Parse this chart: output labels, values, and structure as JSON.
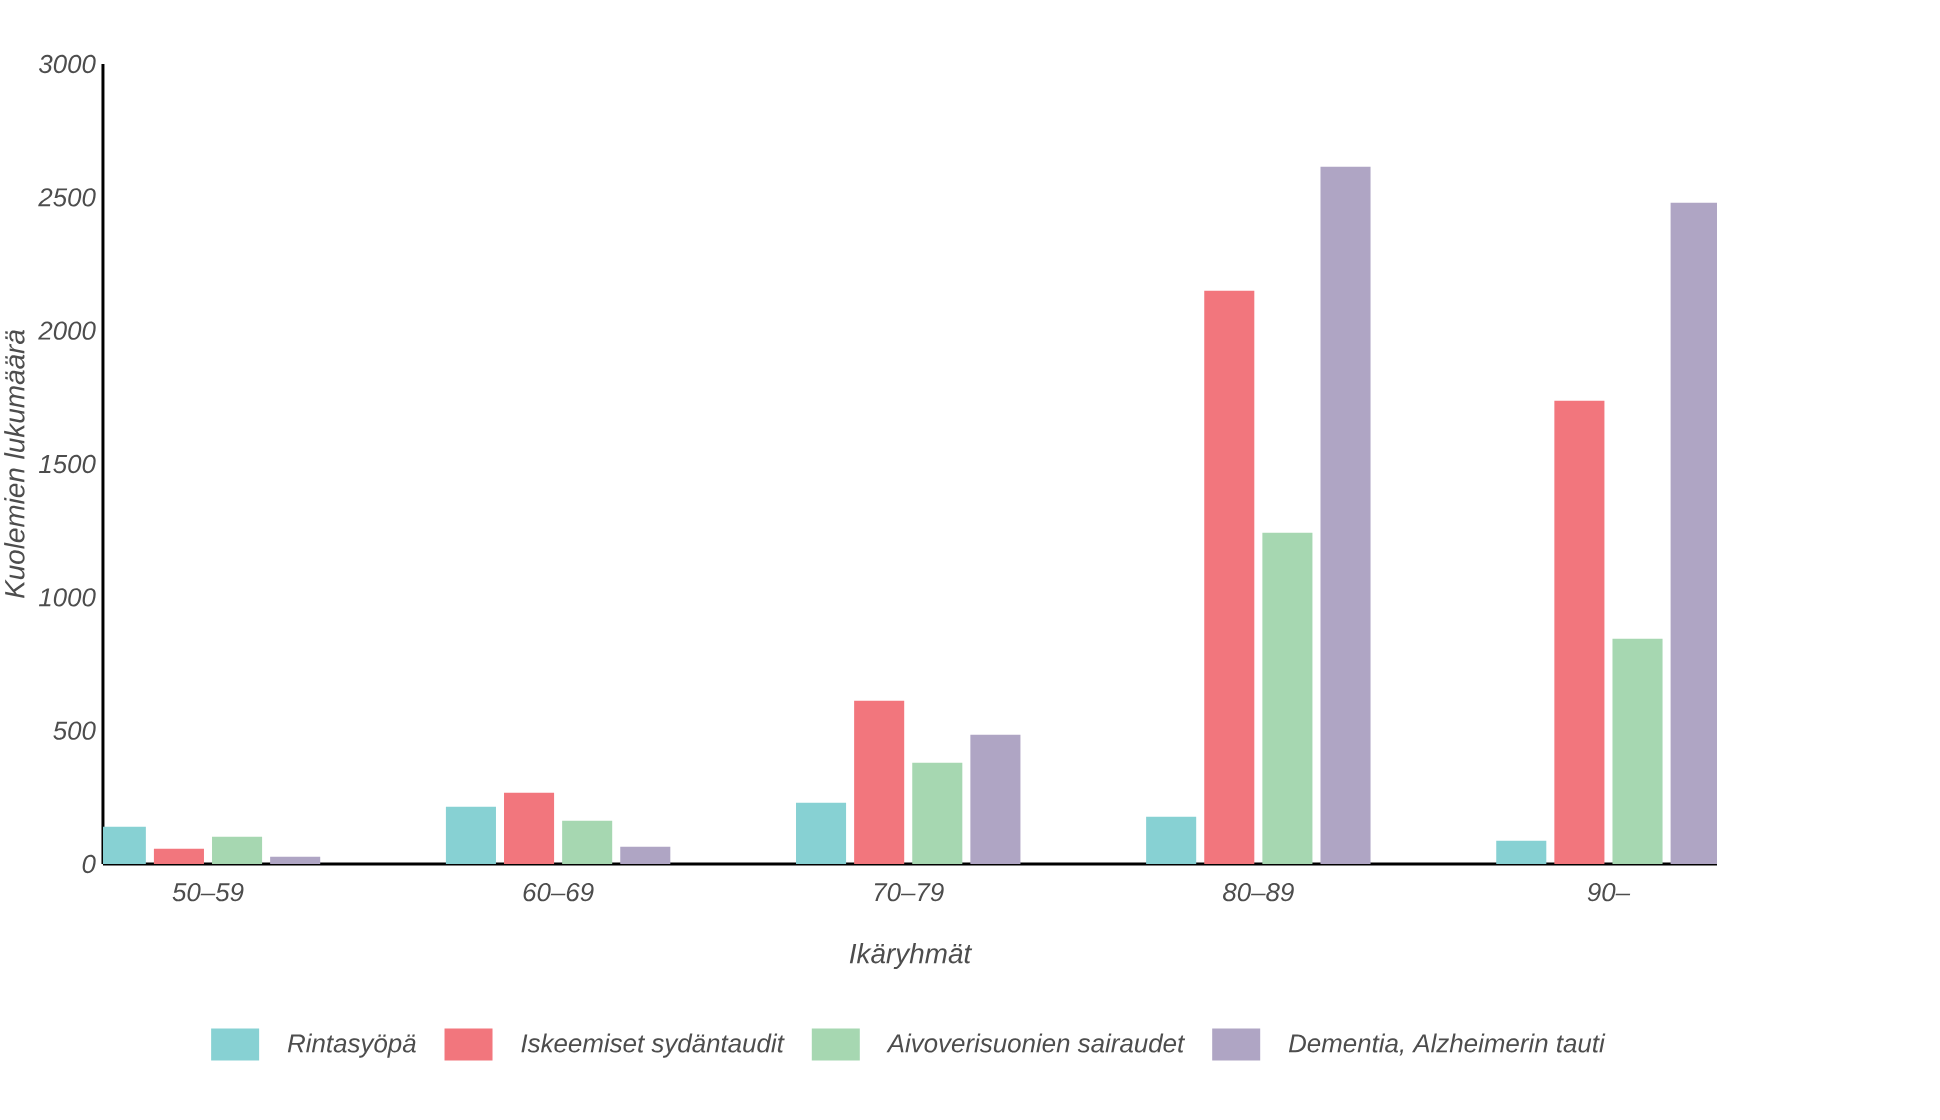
{
  "chart_data": {
    "type": "bar",
    "xlabel": "Ikäryhmät",
    "ylabel": "Kuolemien lukumäärä",
    "categories": [
      "50–59",
      "60–69",
      "70–79",
      "80–89",
      "90–"
    ],
    "series": [
      {
        "name": "Rintasyöpä",
        "color": "#87d1d3",
        "values": [
          140,
          215,
          230,
          177,
          87
        ]
      },
      {
        "name": "Iskeemiset sydäntaudit",
        "color": "#f2767d",
        "values": [
          57,
          267,
          612,
          2150,
          1737
        ]
      },
      {
        "name": "Aivoverisuonien sairaudet",
        "color": "#a6d7b1",
        "values": [
          102,
          162,
          380,
          1242,
          845
        ]
      },
      {
        "name": "Dementia, Alzheimerin tauti",
        "color": "#afa5c4",
        "values": [
          27,
          65,
          485,
          2615,
          2480
        ]
      }
    ],
    "ylim": [
      0,
      3000
    ],
    "yticks": [
      0,
      500,
      1000,
      1500,
      2000,
      2500,
      3000
    ],
    "grid": false,
    "legend": "bottom"
  }
}
